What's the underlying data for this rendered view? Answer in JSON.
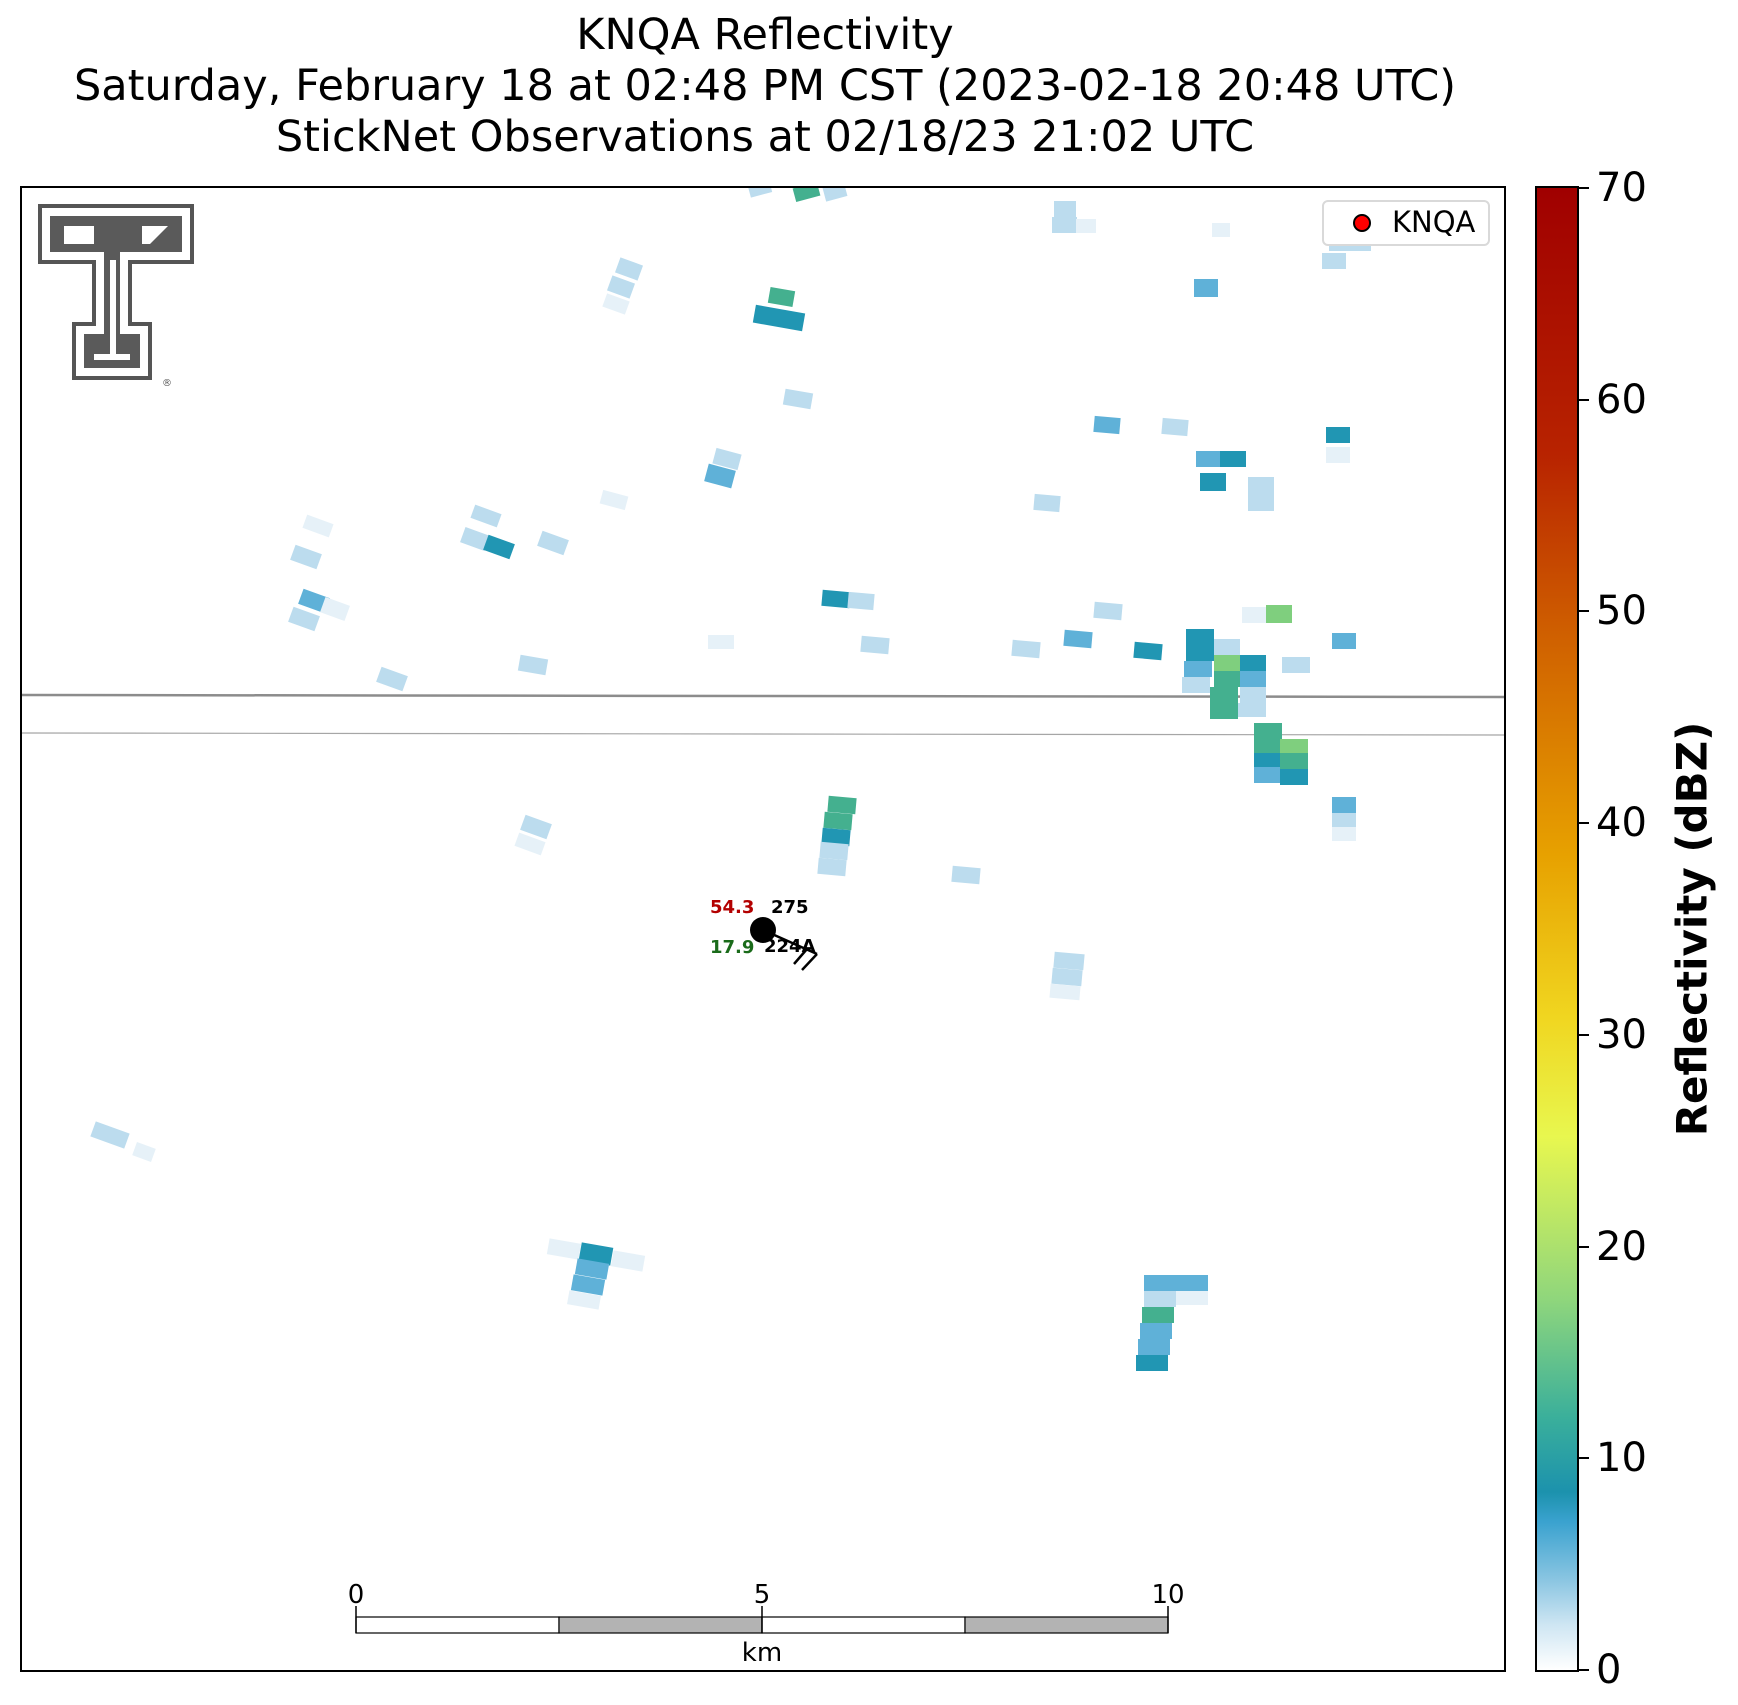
{
  "header": {
    "title_line1": "KNQA Reflectivity",
    "title_line2": "Saturday, February 18 at 02:48 PM CST (2023-02-18 20:48 UTC)",
    "title_line3": "StickNet Observations at 02/18/23 21:02 UTC"
  },
  "legend": {
    "label": "KNQA",
    "marker_color": "#ff0000"
  },
  "station": {
    "temperature": "54.3",
    "dewpoint": "17.9",
    "pressure": "275",
    "id": "224A",
    "temperature_color": "#b30000",
    "dewpoint_color": "#1a6b1a"
  },
  "scalebar": {
    "labels": [
      "0",
      "5",
      "10"
    ],
    "unit": "km"
  },
  "colorbar": {
    "title": "Reflectivity (dBZ)",
    "ticks": [
      "0",
      "10",
      "20",
      "30",
      "40",
      "50",
      "60",
      "70"
    ],
    "range": [
      0,
      70
    ]
  },
  "logo": {
    "description": "Texas Tech Double T logo",
    "mark": "®"
  },
  "colors": {
    "very_light": "#e6f1f8",
    "light_blue": "#bcdcee",
    "mid_blue": "#5fb1d8",
    "teal": "#2196b3",
    "green_teal": "#44b08f",
    "light_green": "#7fcf7e",
    "border_line": "#8c8c8c"
  }
}
